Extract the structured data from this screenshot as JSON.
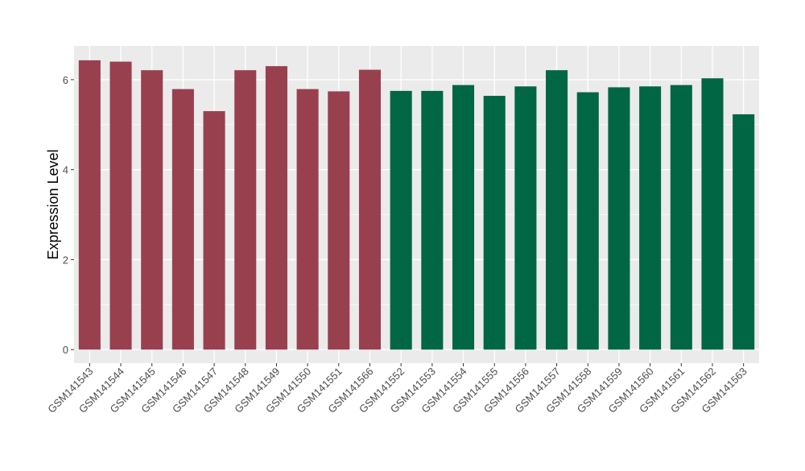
{
  "chart_data": {
    "type": "bar",
    "title": "",
    "xlabel": "",
    "ylabel": "Expression Level",
    "ylim": [
      -0.3,
      6.75
    ],
    "yticks": [
      0,
      2,
      4,
      6
    ],
    "grid": true,
    "legend": "none",
    "colors": {
      "group_a": "#99404f",
      "group_b": "#006644",
      "panel_bg": "#ebebeb",
      "grid": "#ffffff"
    },
    "categories": [
      "GSM141543",
      "GSM141544",
      "GSM141545",
      "GSM141546",
      "GSM141547",
      "GSM141548",
      "GSM141549",
      "GSM141550",
      "GSM141551",
      "GSM141566",
      "GSM141552",
      "GSM141553",
      "GSM141554",
      "GSM141555",
      "GSM141556",
      "GSM141557",
      "GSM141558",
      "GSM141559",
      "GSM141560",
      "GSM141561",
      "GSM141562",
      "GSM141563"
    ],
    "values": [
      6.43,
      6.4,
      6.21,
      5.79,
      5.3,
      6.21,
      6.3,
      5.79,
      5.74,
      6.22,
      5.75,
      5.75,
      5.88,
      5.64,
      5.85,
      6.21,
      5.72,
      5.83,
      5.85,
      5.88,
      6.03,
      5.23
    ],
    "groups": [
      "a",
      "a",
      "a",
      "a",
      "a",
      "a",
      "a",
      "a",
      "a",
      "a",
      "b",
      "b",
      "b",
      "b",
      "b",
      "b",
      "b",
      "b",
      "b",
      "b",
      "b",
      "b"
    ]
  }
}
